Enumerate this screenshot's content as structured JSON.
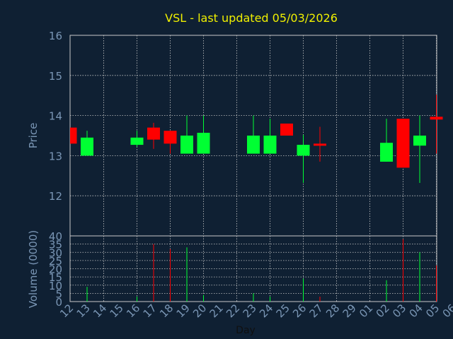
{
  "chart_data": {
    "type": "candlestick",
    "title": "VSL - last updated 05/03/2026",
    "xlabel": "Day",
    "price_panel": {
      "ylabel": "Price",
      "ylim": [
        11.0,
        16.0
      ],
      "yticks": [
        "12",
        "13",
        "14",
        "15",
        "16"
      ]
    },
    "volume_panel": {
      "ylabel": "Volume (0000)",
      "ylim": [
        0,
        40
      ],
      "yticks": [
        "0",
        "5",
        "10",
        "15",
        "20",
        "25",
        "30",
        "35",
        "40"
      ]
    },
    "categories": [
      "12",
      "13",
      "14",
      "15",
      "16",
      "17",
      "18",
      "19",
      "20",
      "21",
      "22",
      "23",
      "24",
      "25",
      "26",
      "27",
      "28",
      "29",
      "01",
      "02",
      "03",
      "04",
      "05",
      "06"
    ],
    "candles": [
      {
        "day": "12",
        "open": 13.7,
        "high": 13.7,
        "low": 13.3,
        "close": 13.3,
        "volume": 0
      },
      {
        "day": "13",
        "open": 13.0,
        "high": 13.62,
        "low": 13.0,
        "close": 13.45,
        "volume": 9
      },
      {
        "day": "16",
        "open": 13.27,
        "high": 13.62,
        "low": 13.22,
        "close": 13.45,
        "volume": 3
      },
      {
        "day": "17",
        "open": 13.7,
        "high": 13.82,
        "low": 13.17,
        "close": 13.4,
        "volume": 35
      },
      {
        "day": "18",
        "open": 13.62,
        "high": 13.62,
        "low": 13.05,
        "close": 13.3,
        "volume": 32
      },
      {
        "day": "19",
        "open": 13.05,
        "high": 14.0,
        "low": 13.05,
        "close": 13.5,
        "volume": 33
      },
      {
        "day": "20",
        "open": 13.05,
        "high": 14.0,
        "low": 13.05,
        "close": 13.57,
        "volume": 4
      },
      {
        "day": "23",
        "open": 13.05,
        "high": 14.0,
        "low": 13.05,
        "close": 13.5,
        "volume": 5
      },
      {
        "day": "24",
        "open": 13.05,
        "high": 13.92,
        "low": 13.05,
        "close": 13.5,
        "volume": 3
      },
      {
        "day": "25",
        "open": 13.8,
        "high": 13.8,
        "low": 13.5,
        "close": 13.5,
        "volume": 0
      },
      {
        "day": "26",
        "open": 13.0,
        "high": 13.52,
        "low": 12.32,
        "close": 13.27,
        "volume": 14
      },
      {
        "day": "27",
        "open": 13.3,
        "high": 13.72,
        "low": 12.85,
        "close": 13.27,
        "volume": 3
      },
      {
        "day": "02",
        "open": 12.85,
        "high": 13.92,
        "low": 12.85,
        "close": 13.32,
        "volume": 13
      },
      {
        "day": "03",
        "open": 13.92,
        "high": 13.92,
        "low": 12.7,
        "close": 12.7,
        "volume": 38
      },
      {
        "day": "04",
        "open": 13.25,
        "high": 14.0,
        "low": 12.32,
        "close": 13.5,
        "volume": 30
      },
      {
        "day": "05",
        "open": 13.97,
        "high": 14.52,
        "low": 13.05,
        "close": 13.9,
        "volume": 22
      }
    ],
    "colors": {
      "up": "#00ff33",
      "down": "#ff0000",
      "background": "#0f2033",
      "grid": "#c8c8c8",
      "title": "#f0f000",
      "axis_text": "#7a96b5",
      "xlabel_text": "#101010"
    },
    "grid": true
  }
}
